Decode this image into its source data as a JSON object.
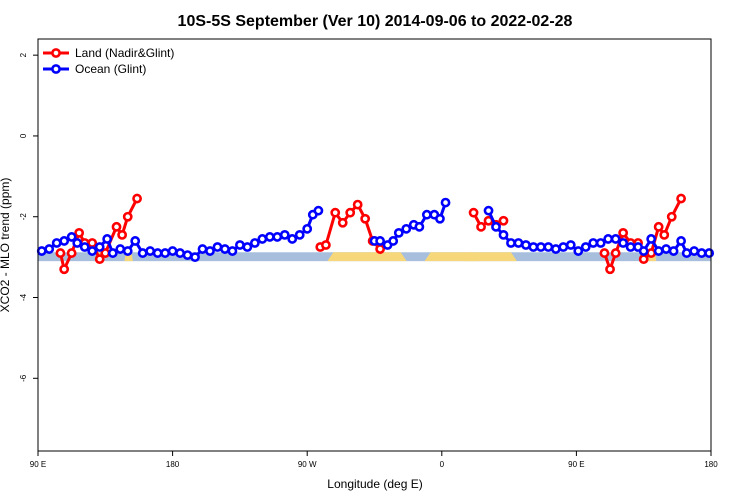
{
  "chart_data": {
    "type": "line",
    "title": "10S-5S September (Ver 10)   2014-09-06 to 2022-02-28",
    "xlabel": "Longitude (deg E)",
    "ylabel": "XCO2 - MLO trend (ppm)",
    "xlim": [
      90,
      450
    ],
    "ylim": [
      -7.8,
      2.4
    ],
    "x_ticks": [
      {
        "value": 90,
        "label": "90 E"
      },
      {
        "value": 162,
        "label": "180"
      },
      {
        "value": 234,
        "label": "90 W"
      },
      {
        "value": 306,
        "label": "0"
      },
      {
        "value": 378,
        "label": "90 E"
      },
      {
        "value": 450,
        "label": "180"
      }
    ],
    "y_ticks": [
      {
        "value": 2,
        "label": "2"
      },
      {
        "value": 0,
        "label": "0"
      },
      {
        "value": -2,
        "label": "-2"
      },
      {
        "value": -4,
        "label": "-4"
      },
      {
        "value": -6,
        "label": "-6"
      }
    ],
    "grid": false,
    "legend_position": "top-left",
    "series": [
      {
        "name": "Land (Nadir&Glint)",
        "color": "#ff0000",
        "segments": [
          [
            [
              102,
              -2.9
            ],
            [
              104,
              -3.3
            ],
            [
              108,
              -2.9
            ],
            [
              112,
              -2.4
            ],
            [
              115,
              -2.65
            ],
            [
              119,
              -2.65
            ],
            [
              123,
              -3.05
            ],
            [
              126,
              -2.9
            ],
            [
              132,
              -2.25
            ],
            [
              135,
              -2.45
            ],
            [
              138,
              -2.0
            ],
            [
              143,
              -1.55
            ]
          ],
          [
            [
              241,
              -2.75
            ],
            [
              244,
              -2.7
            ],
            [
              249,
              -1.9
            ],
            [
              253,
              -2.15
            ],
            [
              257,
              -1.9
            ],
            [
              261,
              -1.7
            ],
            [
              265,
              -2.05
            ],
            [
              269,
              -2.6
            ],
            [
              273,
              -2.8
            ]
          ],
          [
            [
              323,
              -1.9
            ],
            [
              327,
              -2.25
            ],
            [
              331,
              -2.1
            ],
            [
              335,
              -2.2
            ],
            [
              339,
              -2.1
            ]
          ],
          [
            [
              393,
              -2.9
            ],
            [
              396,
              -3.3
            ],
            [
              399,
              -2.9
            ],
            [
              403,
              -2.4
            ],
            [
              407,
              -2.65
            ],
            [
              411,
              -2.65
            ],
            [
              414,
              -3.05
            ],
            [
              418,
              -2.9
            ],
            [
              422,
              -2.25
            ],
            [
              425,
              -2.45
            ],
            [
              429,
              -2.0
            ],
            [
              434,
              -1.55
            ]
          ]
        ]
      },
      {
        "name": "Ocean (Glint)",
        "color": "#0000ff",
        "segments": [
          [
            [
              92,
              -2.85
            ],
            [
              96,
              -2.8
            ],
            [
              100,
              -2.65
            ],
            [
              104,
              -2.6
            ],
            [
              108,
              -2.5
            ],
            [
              111,
              -2.65
            ],
            [
              115,
              -2.75
            ],
            [
              119,
              -2.85
            ],
            [
              123,
              -2.75
            ],
            [
              127,
              -2.55
            ],
            [
              130,
              -2.9
            ],
            [
              134,
              -2.8
            ],
            [
              138,
              -2.85
            ],
            [
              142,
              -2.6
            ],
            [
              146,
              -2.9
            ],
            [
              150,
              -2.85
            ],
            [
              154,
              -2.9
            ],
            [
              158,
              -2.9
            ],
            [
              162,
              -2.85
            ],
            [
              166,
              -2.9
            ],
            [
              170,
              -2.95
            ],
            [
              174,
              -3.0
            ],
            [
              178,
              -2.8
            ],
            [
              182,
              -2.85
            ],
            [
              186,
              -2.75
            ],
            [
              190,
              -2.8
            ],
            [
              194,
              -2.85
            ],
            [
              198,
              -2.7
            ],
            [
              202,
              -2.75
            ],
            [
              206,
              -2.65
            ],
            [
              210,
              -2.55
            ],
            [
              214,
              -2.5
            ],
            [
              218,
              -2.5
            ],
            [
              222,
              -2.45
            ],
            [
              226,
              -2.55
            ],
            [
              230,
              -2.45
            ],
            [
              234,
              -2.3
            ],
            [
              237,
              -1.95
            ],
            [
              240,
              -1.85
            ]
          ],
          [
            [
              270,
              -2.6
            ],
            [
              273,
              -2.6
            ],
            [
              277,
              -2.7
            ],
            [
              280,
              -2.6
            ],
            [
              283,
              -2.4
            ],
            [
              287,
              -2.3
            ],
            [
              291,
              -2.2
            ],
            [
              294,
              -2.25
            ],
            [
              298,
              -1.95
            ],
            [
              302,
              -1.95
            ],
            [
              305,
              -2.05
            ],
            [
              308,
              -1.65
            ]
          ],
          [
            [
              331,
              -1.85
            ],
            [
              335,
              -2.25
            ],
            [
              339,
              -2.45
            ],
            [
              343,
              -2.65
            ],
            [
              347,
              -2.65
            ],
            [
              351,
              -2.7
            ],
            [
              355,
              -2.75
            ],
            [
              359,
              -2.75
            ],
            [
              363,
              -2.75
            ],
            [
              367,
              -2.8
            ],
            [
              371,
              -2.75
            ],
            [
              375,
              -2.7
            ],
            [
              379,
              -2.85
            ],
            [
              383,
              -2.75
            ],
            [
              387,
              -2.65
            ],
            [
              391,
              -2.65
            ],
            [
              395,
              -2.55
            ],
            [
              399,
              -2.55
            ],
            [
              403,
              -2.65
            ],
            [
              407,
              -2.75
            ],
            [
              411,
              -2.75
            ],
            [
              414,
              -2.85
            ],
            [
              418,
              -2.55
            ],
            [
              422,
              -2.85
            ],
            [
              426,
              -2.8
            ],
            [
              430,
              -2.85
            ],
            [
              434,
              -2.6
            ],
            [
              437,
              -2.9
            ],
            [
              441,
              -2.85
            ],
            [
              445,
              -2.9
            ],
            [
              449,
              -2.9
            ]
          ]
        ]
      }
    ],
    "background_band": {
      "y_range": [
        -3.1,
        -2.88
      ],
      "ocean_color": "#a7bfdd",
      "land_color": "#f6d77a",
      "land_x_ranges": [
        [
          122,
          124
        ],
        [
          137,
          140
        ],
        [
          248,
          284
        ],
        [
          300,
          322
        ],
        [
          321,
          343
        ],
        [
          417,
          420
        ]
      ]
    }
  }
}
